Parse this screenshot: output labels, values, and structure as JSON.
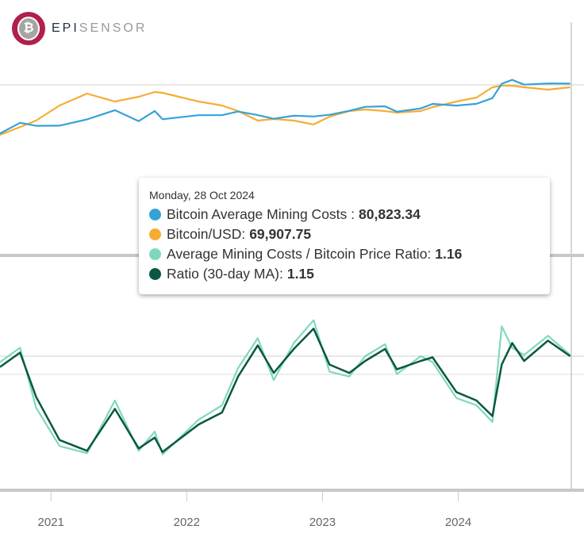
{
  "brand": {
    "logo_text_bold": "EPI",
    "logo_text_light": "SENSOR",
    "logo_symbol": "bitcoin-icon",
    "ring_color": "#b0204a"
  },
  "tooltip": {
    "date": "Monday, 28 Oct 2024",
    "rows": [
      {
        "label": "Bitcoin Average Mining Costs :",
        "value": "80,823.34",
        "color": "#36a2d6"
      },
      {
        "label": "Bitcoin/USD:",
        "value": "69,907.75",
        "color": "#f5ad35"
      },
      {
        "label": "Average Mining Costs / Bitcoin Price Ratio:",
        "value": "1.16",
        "color": "#7fd8bd"
      },
      {
        "label": "Ratio (30-day MA):",
        "value": "1.15",
        "color": "#0b5744"
      }
    ]
  },
  "chart_data": {
    "type": "line",
    "x_ticks": [
      "2021",
      "2022",
      "2023",
      "2024"
    ],
    "x_range": [
      "2020-08-17",
      "2024-10-31"
    ],
    "crosshair_date": "2024-10-28",
    "panes": [
      {
        "name": "price",
        "y_scale": "log",
        "grid": true,
        "series": [
          "mining_costs",
          "btc_usd"
        ]
      },
      {
        "name": "ratio",
        "y_scale": "linear",
        "grid": true,
        "series": [
          "ratio",
          "ratio_ma"
        ]
      }
    ],
    "dates": [
      "2020-08-17",
      "2020-10-10",
      "2020-11-22",
      "2021-01-24",
      "2021-04-08",
      "2021-06-22",
      "2021-08-25",
      "2021-10-07",
      "2021-10-28",
      "2022-02-02",
      "2022-04-06",
      "2022-05-19",
      "2022-07-11",
      "2022-08-23",
      "2022-10-16",
      "2022-12-08",
      "2023-01-20",
      "2023-03-14",
      "2023-04-26",
      "2023-06-18",
      "2023-07-20",
      "2023-09-22",
      "2023-10-24",
      "2023-12-27",
      "2024-02-19",
      "2024-04-02",
      "2024-04-27",
      "2024-05-25",
      "2024-06-26",
      "2024-08-29",
      "2024-10-28"
    ],
    "series": [
      {
        "key": "mining_costs",
        "name": "Bitcoin Average Mining Costs",
        "color": "#36a2d6",
        "values": [
          11100,
          17000,
          15100,
          15200,
          19500,
          28100,
          18200,
          27200,
          19600,
          23000,
          23000,
          26600,
          23100,
          20000,
          22500,
          21900,
          23400,
          27400,
          32100,
          32800,
          26500,
          30100,
          36100,
          33700,
          36200,
          45400,
          80400,
          93700,
          77600,
          81400,
          80823
        ]
      },
      {
        "key": "btc_usd",
        "name": "Bitcoin/USD",
        "color": "#f5ad35",
        "values": [
          10500,
          14400,
          18600,
          33800,
          54300,
          39600,
          47900,
          57800,
          56000,
          39600,
          33800,
          27100,
          18600,
          19800,
          18600,
          15900,
          21700,
          27100,
          28900,
          27100,
          25500,
          27100,
          31700,
          39600,
          46400,
          69900,
          74400,
          74400,
          69900,
          63600,
          69908
        ]
      },
      {
        "key": "ratio",
        "name": "Average Mining Costs / Bitcoin Price Ratio",
        "color": "#7fd8bd",
        "values": [
          1.1,
          1.22,
          0.72,
          0.4,
          0.34,
          0.78,
          0.36,
          0.52,
          0.33,
          0.62,
          0.74,
          1.05,
          1.3,
          0.95,
          1.26,
          1.45,
          1.02,
          0.98,
          1.15,
          1.25,
          1.0,
          1.15,
          1.1,
          0.8,
          0.74,
          0.6,
          1.4,
          1.22,
          1.16,
          1.32,
          1.16
        ]
      },
      {
        "key": "ratio_ma",
        "name": "Ratio (30-day MA)",
        "color": "#0b5744",
        "values": [
          1.06,
          1.18,
          0.81,
          0.45,
          0.36,
          0.71,
          0.38,
          0.47,
          0.35,
          0.58,
          0.68,
          0.98,
          1.24,
          1.01,
          1.21,
          1.38,
          1.08,
          1.01,
          1.11,
          1.21,
          1.04,
          1.11,
          1.14,
          0.85,
          0.78,
          0.65,
          1.08,
          1.26,
          1.11,
          1.28,
          1.15
        ]
      }
    ]
  }
}
